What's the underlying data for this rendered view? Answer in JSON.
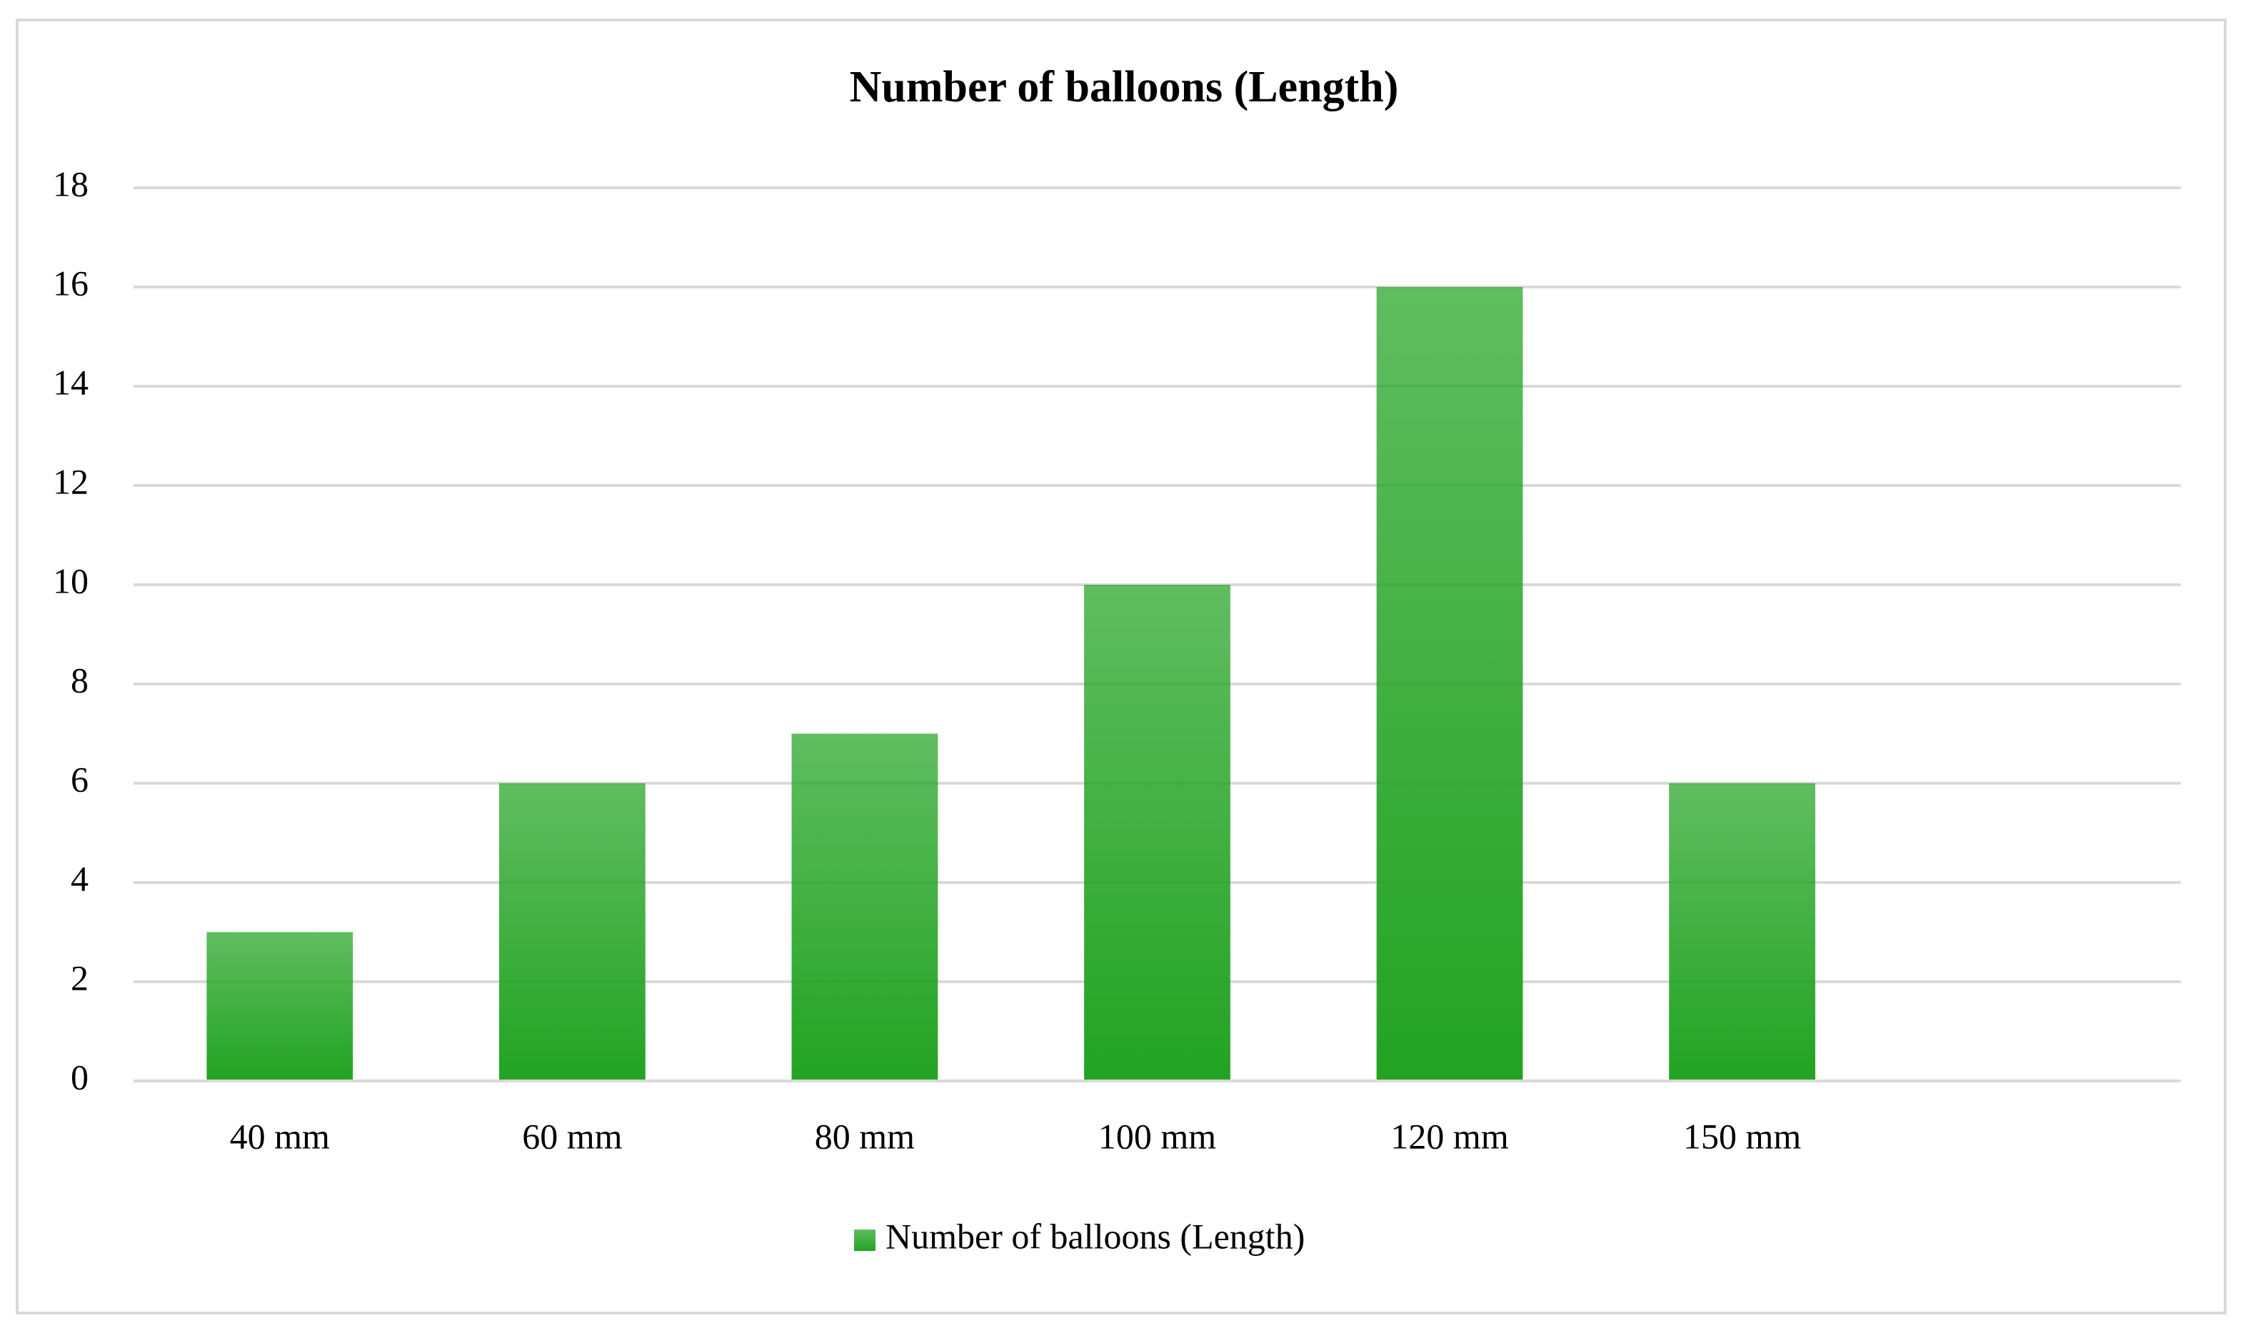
{
  "chart_data": {
    "type": "bar",
    "title": "Number of balloons (Length)",
    "categories": [
      "40 mm",
      "60 mm",
      "80 mm",
      "100 mm",
      "120 mm",
      "150 mm",
      null
    ],
    "series": [
      {
        "name": "Number of balloons (Length)",
        "color": "#22a322",
        "values": [
          3,
          6,
          7,
          10,
          16,
          6,
          null
        ]
      }
    ],
    "ylim": [
      0,
      18
    ],
    "yticks": [
      0,
      2,
      4,
      6,
      8,
      10,
      12,
      14,
      16,
      18
    ],
    "grid": true,
    "legend": "bottom"
  }
}
